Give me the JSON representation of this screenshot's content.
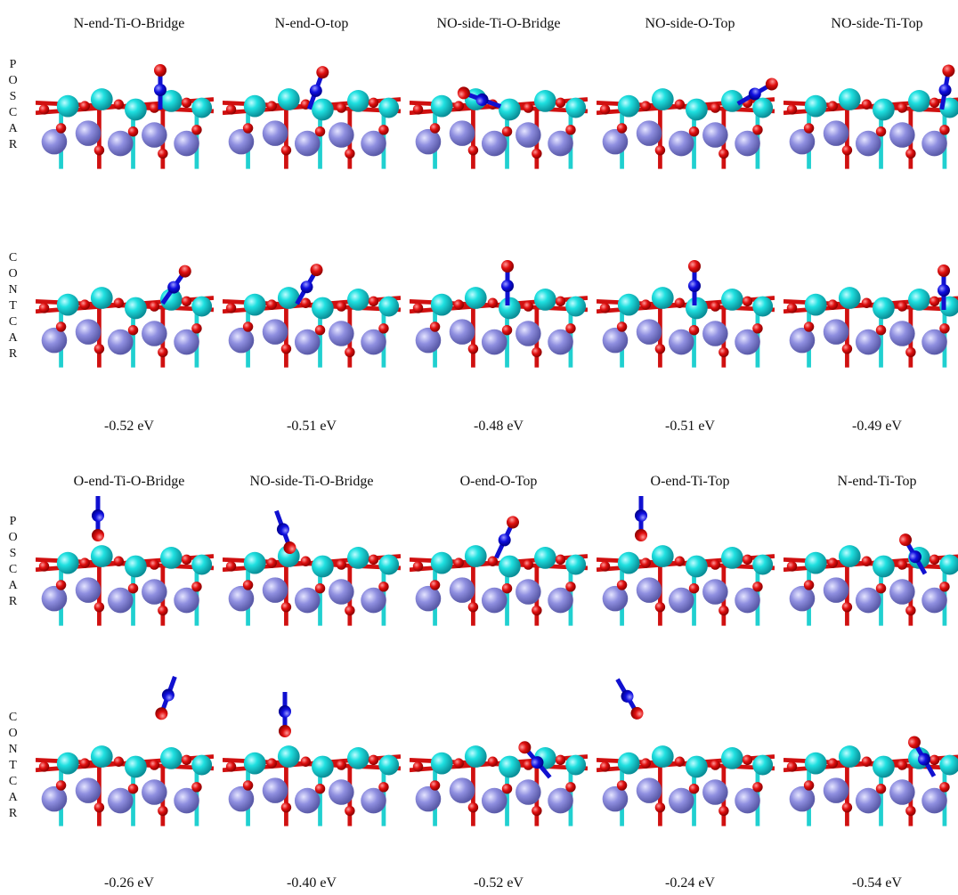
{
  "panels": [
    {
      "columns": [
        "N-end-Ti-O-Bridge",
        "N-end-O-top",
        "NO-side-Ti-O-Bridge",
        "NO-side-O-Top",
        "NO-side-Ti-Top"
      ],
      "row_labels": [
        "POSCAR",
        "CONTCAR"
      ],
      "energies": [
        "-0.52 eV",
        "-0.51 eV",
        "-0.48 eV",
        "-0.51 eV",
        "-0.49 eV"
      ]
    },
    {
      "columns": [
        "O-end-Ti-O-Bridge",
        "NO-side-Ti-O-Bridge",
        "O-end-O-Top",
        "O-end-Ti-Top",
        "N-end-Ti-Top"
      ],
      "row_labels": [
        "POSCAR",
        "CONTCAR"
      ],
      "energies": [
        "-0.26 eV",
        "-0.40 eV",
        "-0.52 eV",
        "-0.24 eV",
        "-0.54 eV"
      ]
    }
  ]
}
